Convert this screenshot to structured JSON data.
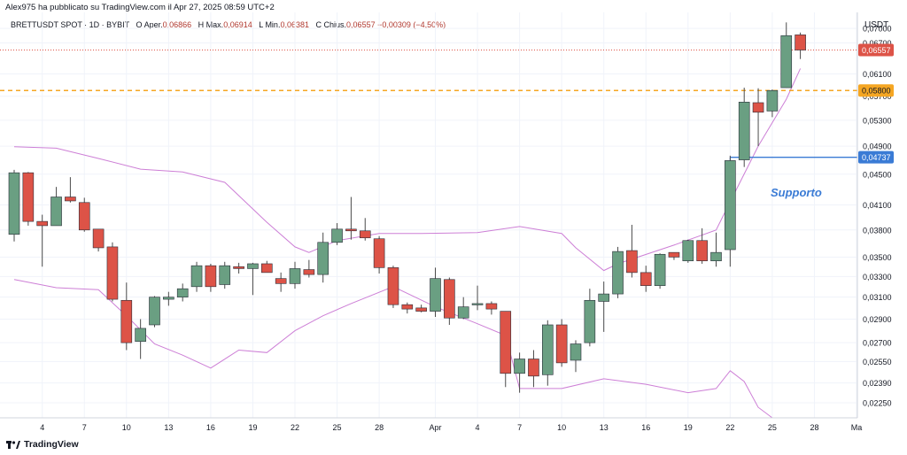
{
  "header": {
    "credit": "Alex975 ha pubblicato su TradingView.com il Apr 27, 2025 08:59 UTC+2"
  },
  "legend": {
    "symbol": "BRETTUSDT SPOT · 1D · BYBIT",
    "open_label": "O",
    "open_text": "Aper.",
    "open": "0,06866",
    "high_label": "H",
    "high_text": "Max.",
    "high": "0,06914",
    "low_label": "L",
    "low_text": "Min.",
    "low": "0,06381",
    "close_label": "C",
    "close_text": "Chius.",
    "close": "0,06557",
    "change": "−0,00309 (−4,50%)"
  },
  "axis": {
    "unit": "USDT",
    "y_ticks": [
      0.07,
      0.067,
      0.061,
      0.057,
      0.053,
      0.049,
      0.045,
      0.041,
      0.038,
      0.035,
      0.033,
      0.031,
      0.029,
      0.027,
      0.0255,
      0.0239,
      0.0225
    ],
    "y_tick_labels": [
      "0,07000",
      "0,06700",
      "0,06100",
      "0,05700",
      "0,05300",
      "0,04900",
      "0,04500",
      "0,04100",
      "0,03800",
      "0,03500",
      "0,03300",
      "0,03100",
      "0,02900",
      "0,02700",
      "0,02550",
      "0,02390",
      "0,02250"
    ],
    "x_ticks": [
      {
        "label": "4",
        "index": 2
      },
      {
        "label": "7",
        "index": 5
      },
      {
        "label": "10",
        "index": 8
      },
      {
        "label": "13",
        "index": 11
      },
      {
        "label": "16",
        "index": 14
      },
      {
        "label": "19",
        "index": 17
      },
      {
        "label": "22",
        "index": 20
      },
      {
        "label": "25",
        "index": 23
      },
      {
        "label": "28",
        "index": 26
      },
      {
        "label": "Apr",
        "index": 30
      },
      {
        "label": "4",
        "index": 33
      },
      {
        "label": "7",
        "index": 36
      },
      {
        "label": "10",
        "index": 39
      },
      {
        "label": "13",
        "index": 42
      },
      {
        "label": "16",
        "index": 45
      },
      {
        "label": "19",
        "index": 48
      },
      {
        "label": "22",
        "index": 51
      },
      {
        "label": "25",
        "index": 54
      },
      {
        "label": "28",
        "index": 57
      },
      {
        "label": "Ma",
        "index": 60
      }
    ]
  },
  "colors": {
    "up": "#6a9f82",
    "down": "#dd5347",
    "band": "#cd7fd6",
    "resistance": "#f5a623",
    "support": "#3a7bd5",
    "last_price": "#dd5347"
  },
  "price_tags": {
    "last": {
      "value": 0.06557,
      "label": "0,06557"
    },
    "resistance": {
      "value": 0.058,
      "label": "0,05800"
    },
    "support": {
      "value": 0.04737,
      "label": "0,04737"
    }
  },
  "annotations": {
    "support_text": "Supporto",
    "support_start_index": 51
  },
  "brand": {
    "name": "TradingView"
  },
  "chart_data": {
    "type": "candlestick",
    "title": "BRETTUSDT SPOT · 1D · BYBIT",
    "ylabel": "USDT",
    "ylim": [
      0.0215,
      0.0735
    ],
    "y_scale": "log",
    "x_index_range": [
      0,
      61
    ],
    "candles": [
      {
        "i": 0,
        "o": 0.0375,
        "h": 0.0456,
        "l": 0.0367,
        "c": 0.0452
      },
      {
        "i": 1,
        "o": 0.0452,
        "h": 0.0453,
        "l": 0.0385,
        "c": 0.039
      },
      {
        "i": 2,
        "o": 0.039,
        "h": 0.0398,
        "l": 0.034,
        "c": 0.0385
      },
      {
        "i": 3,
        "o": 0.0385,
        "h": 0.0433,
        "l": 0.0385,
        "c": 0.042
      },
      {
        "i": 4,
        "o": 0.042,
        "h": 0.0446,
        "l": 0.0413,
        "c": 0.0415
      },
      {
        "i": 5,
        "o": 0.0413,
        "h": 0.0419,
        "l": 0.0378,
        "c": 0.038
      },
      {
        "i": 6,
        "o": 0.0381,
        "h": 0.0381,
        "l": 0.0356,
        "c": 0.036
      },
      {
        "i": 7,
        "o": 0.0361,
        "h": 0.0366,
        "l": 0.0306,
        "c": 0.0308
      },
      {
        "i": 8,
        "o": 0.0307,
        "h": 0.0324,
        "l": 0.0264,
        "c": 0.027
      },
      {
        "i": 9,
        "o": 0.0271,
        "h": 0.029,
        "l": 0.0257,
        "c": 0.0282
      },
      {
        "i": 10,
        "o": 0.0285,
        "h": 0.0311,
        "l": 0.0283,
        "c": 0.031
      },
      {
        "i": 11,
        "o": 0.0308,
        "h": 0.0315,
        "l": 0.0302,
        "c": 0.031
      },
      {
        "i": 12,
        "o": 0.031,
        "h": 0.0323,
        "l": 0.0306,
        "c": 0.0318
      },
      {
        "i": 13,
        "o": 0.032,
        "h": 0.0345,
        "l": 0.0315,
        "c": 0.0341
      },
      {
        "i": 14,
        "o": 0.0341,
        "h": 0.0343,
        "l": 0.0315,
        "c": 0.032
      },
      {
        "i": 15,
        "o": 0.0322,
        "h": 0.0345,
        "l": 0.0318,
        "c": 0.0341
      },
      {
        "i": 16,
        "o": 0.034,
        "h": 0.0344,
        "l": 0.0333,
        "c": 0.0338
      },
      {
        "i": 17,
        "o": 0.0338,
        "h": 0.0344,
        "l": 0.0312,
        "c": 0.0343
      },
      {
        "i": 18,
        "o": 0.0343,
        "h": 0.0346,
        "l": 0.0334,
        "c": 0.0334
      },
      {
        "i": 19,
        "o": 0.0328,
        "h": 0.0334,
        "l": 0.0315,
        "c": 0.0323
      },
      {
        "i": 20,
        "o": 0.0323,
        "h": 0.0345,
        "l": 0.0318,
        "c": 0.0338
      },
      {
        "i": 21,
        "o": 0.0337,
        "h": 0.0347,
        "l": 0.0329,
        "c": 0.0332
      },
      {
        "i": 22,
        "o": 0.0332,
        "h": 0.0377,
        "l": 0.0324,
        "c": 0.0366
      },
      {
        "i": 23,
        "o": 0.0366,
        "h": 0.0388,
        "l": 0.0363,
        "c": 0.0381
      },
      {
        "i": 24,
        "o": 0.0381,
        "h": 0.042,
        "l": 0.0369,
        "c": 0.0379
      },
      {
        "i": 25,
        "o": 0.0379,
        "h": 0.0394,
        "l": 0.0368,
        "c": 0.0371
      },
      {
        "i": 26,
        "o": 0.037,
        "h": 0.0373,
        "l": 0.0333,
        "c": 0.0339
      },
      {
        "i": 27,
        "o": 0.0339,
        "h": 0.0341,
        "l": 0.03,
        "c": 0.0303
      },
      {
        "i": 28,
        "o": 0.0303,
        "h": 0.0305,
        "l": 0.0295,
        "c": 0.0299
      },
      {
        "i": 29,
        "o": 0.03,
        "h": 0.0303,
        "l": 0.0296,
        "c": 0.0297
      },
      {
        "i": 30,
        "o": 0.0297,
        "h": 0.0339,
        "l": 0.0292,
        "c": 0.0328
      },
      {
        "i": 31,
        "o": 0.0327,
        "h": 0.0329,
        "l": 0.0285,
        "c": 0.0291
      },
      {
        "i": 32,
        "o": 0.0291,
        "h": 0.031,
        "l": 0.029,
        "c": 0.0301
      },
      {
        "i": 33,
        "o": 0.0303,
        "h": 0.0321,
        "l": 0.0298,
        "c": 0.0304
      },
      {
        "i": 34,
        "o": 0.0304,
        "h": 0.0306,
        "l": 0.0294,
        "c": 0.0299
      },
      {
        "i": 35,
        "o": 0.0297,
        "h": 0.0297,
        "l": 0.0236,
        "c": 0.0246
      },
      {
        "i": 36,
        "o": 0.0246,
        "h": 0.0262,
        "l": 0.0232,
        "c": 0.0257
      },
      {
        "i": 37,
        "o": 0.0257,
        "h": 0.0264,
        "l": 0.0236,
        "c": 0.0244
      },
      {
        "i": 38,
        "o": 0.0245,
        "h": 0.0289,
        "l": 0.0237,
        "c": 0.0285
      },
      {
        "i": 39,
        "o": 0.0285,
        "h": 0.029,
        "l": 0.0251,
        "c": 0.0254
      },
      {
        "i": 40,
        "o": 0.0256,
        "h": 0.0272,
        "l": 0.0247,
        "c": 0.0269
      },
      {
        "i": 41,
        "o": 0.027,
        "h": 0.0318,
        "l": 0.0267,
        "c": 0.0307
      },
      {
        "i": 42,
        "o": 0.0306,
        "h": 0.0325,
        "l": 0.0279,
        "c": 0.0313
      },
      {
        "i": 43,
        "o": 0.0313,
        "h": 0.0361,
        "l": 0.0309,
        "c": 0.0356
      },
      {
        "i": 44,
        "o": 0.0357,
        "h": 0.0386,
        "l": 0.0329,
        "c": 0.0334
      },
      {
        "i": 45,
        "o": 0.0334,
        "h": 0.0341,
        "l": 0.0315,
        "c": 0.0321
      },
      {
        "i": 46,
        "o": 0.0321,
        "h": 0.0354,
        "l": 0.0318,
        "c": 0.0353
      },
      {
        "i": 47,
        "o": 0.0355,
        "h": 0.0355,
        "l": 0.0347,
        "c": 0.035
      },
      {
        "i": 48,
        "o": 0.0346,
        "h": 0.0369,
        "l": 0.0344,
        "c": 0.0368
      },
      {
        "i": 49,
        "o": 0.0368,
        "h": 0.0382,
        "l": 0.0343,
        "c": 0.0346
      },
      {
        "i": 50,
        "o": 0.0346,
        "h": 0.0377,
        "l": 0.034,
        "c": 0.0355
      },
      {
        "i": 51,
        "o": 0.0358,
        "h": 0.0476,
        "l": 0.034,
        "c": 0.0469
      },
      {
        "i": 52,
        "o": 0.047,
        "h": 0.0585,
        "l": 0.046,
        "c": 0.056
      },
      {
        "i": 53,
        "o": 0.0559,
        "h": 0.0584,
        "l": 0.049,
        "c": 0.0543
      },
      {
        "i": 54,
        "o": 0.0545,
        "h": 0.0582,
        "l": 0.0535,
        "c": 0.058
      },
      {
        "i": 55,
        "o": 0.0585,
        "h": 0.0713,
        "l": 0.0585,
        "c": 0.0685
      },
      {
        "i": 56,
        "o": 0.06866,
        "h": 0.06914,
        "l": 0.06381,
        "c": 0.06557
      }
    ],
    "bands": {
      "upper": [
        [
          0,
          0.0489
        ],
        [
          3,
          0.0487
        ],
        [
          6,
          0.0472
        ],
        [
          9,
          0.0457
        ],
        [
          12,
          0.0453
        ],
        [
          15,
          0.0439
        ],
        [
          18,
          0.0389
        ],
        [
          20,
          0.0361
        ],
        [
          21,
          0.0355
        ],
        [
          23,
          0.0368
        ],
        [
          26,
          0.0376
        ],
        [
          29,
          0.0376
        ],
        [
          33,
          0.0377
        ],
        [
          36,
          0.0384
        ],
        [
          39,
          0.0376
        ],
        [
          40,
          0.036
        ],
        [
          42,
          0.0336
        ],
        [
          43,
          0.0343
        ],
        [
          47,
          0.0363
        ],
        [
          50,
          0.038
        ],
        [
          51,
          0.0414
        ],
        [
          53,
          0.049
        ],
        [
          55,
          0.0565
        ],
        [
          56,
          0.062
        ]
      ],
      "lower": [
        [
          0,
          0.0327
        ],
        [
          3,
          0.0319
        ],
        [
          6,
          0.0317
        ],
        [
          8,
          0.0293
        ],
        [
          10,
          0.0269
        ],
        [
          12,
          0.026
        ],
        [
          14,
          0.025
        ],
        [
          16,
          0.0264
        ],
        [
          18,
          0.0262
        ],
        [
          20,
          0.028
        ],
        [
          22,
          0.0293
        ],
        [
          24,
          0.0304
        ],
        [
          27,
          0.032
        ],
        [
          30,
          0.0301
        ],
        [
          33,
          0.0286
        ],
        [
          35,
          0.0276
        ],
        [
          36,
          0.0235
        ],
        [
          39,
          0.0235
        ],
        [
          42,
          0.0242
        ],
        [
          45,
          0.0238
        ],
        [
          48,
          0.0232
        ],
        [
          50,
          0.0235
        ],
        [
          51,
          0.0248
        ],
        [
          52,
          0.024
        ],
        [
          53,
          0.0222
        ],
        [
          54,
          0.0215
        ]
      ]
    }
  }
}
